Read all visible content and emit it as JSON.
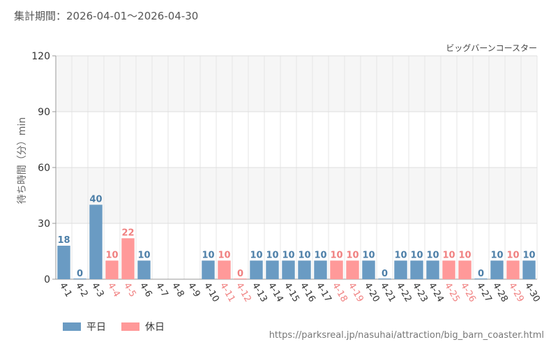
{
  "period_label": "集計期間：2026-04-01～2026-04-30",
  "attraction_name": "ビッグバーンコースター",
  "source_url": "https://parksreal.jp/nasuhai/attraction/big_barn_coaster.html",
  "colors": {
    "weekday": "#6a9bc3",
    "holiday": "#ff9999",
    "weekday_label": "#4d7fa8",
    "holiday_label": "#f08080"
  },
  "chart_data": {
    "type": "bar",
    "title": "",
    "xlabel": "",
    "ylabel": "待ち時間（分）min",
    "ylim": [
      0,
      120
    ],
    "yticks": [
      0,
      30,
      60,
      90,
      120
    ],
    "grid": true,
    "legend_position": "bottom-left",
    "legend": [
      {
        "key": "weekday",
        "label": "平日"
      },
      {
        "key": "holiday",
        "label": "休日"
      }
    ],
    "categories": [
      "4-1",
      "4-2",
      "4-3",
      "4-4",
      "4-5",
      "4-6",
      "4-7",
      "4-8",
      "4-9",
      "4-10",
      "4-11",
      "4-12",
      "4-13",
      "4-14",
      "4-15",
      "4-16",
      "4-17",
      "4-18",
      "4-19",
      "4-20",
      "4-21",
      "4-22",
      "4-23",
      "4-24",
      "4-25",
      "4-26",
      "4-27",
      "4-28",
      "4-29",
      "4-30"
    ],
    "values": [
      18,
      0,
      40,
      10,
      22,
      10,
      null,
      null,
      null,
      10,
      10,
      0,
      10,
      10,
      10,
      10,
      10,
      10,
      10,
      10,
      0,
      10,
      10,
      10,
      10,
      10,
      0,
      10,
      10,
      10
    ],
    "day_type": [
      "weekday",
      "weekday",
      "weekday",
      "holiday",
      "holiday",
      "weekday",
      "weekday",
      "weekday",
      "weekday",
      "weekday",
      "holiday",
      "holiday",
      "weekday",
      "weekday",
      "weekday",
      "weekday",
      "weekday",
      "holiday",
      "holiday",
      "weekday",
      "weekday",
      "weekday",
      "weekday",
      "weekday",
      "holiday",
      "holiday",
      "weekday",
      "weekday",
      "holiday",
      "weekday"
    ]
  }
}
